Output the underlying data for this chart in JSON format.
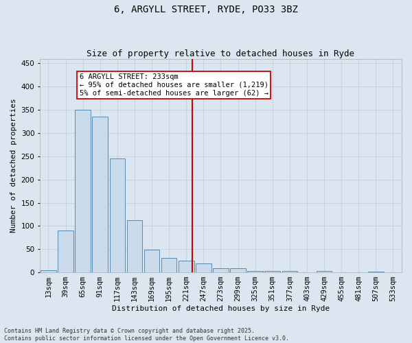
{
  "title": "6, ARGYLL STREET, RYDE, PO33 3BZ",
  "subtitle": "Size of property relative to detached houses in Ryde",
  "xlabel": "Distribution of detached houses by size in Ryde",
  "ylabel": "Number of detached properties",
  "footer": "Contains HM Land Registry data © Crown copyright and database right 2025.\nContains public sector information licensed under the Open Government Licence v3.0.",
  "categories": [
    "13sqm",
    "39sqm",
    "65sqm",
    "91sqm",
    "117sqm",
    "143sqm",
    "169sqm",
    "195sqm",
    "221sqm",
    "247sqm",
    "273sqm",
    "299sqm",
    "325sqm",
    "351sqm",
    "377sqm",
    "403sqm",
    "429sqm",
    "455sqm",
    "481sqm",
    "507sqm",
    "533sqm"
  ],
  "values": [
    5,
    90,
    350,
    336,
    246,
    112,
    49,
    31,
    25,
    19,
    9,
    9,
    3,
    3,
    3,
    0,
    3,
    0,
    0,
    2,
    0
  ],
  "bar_color": "#c9daea",
  "bar_edge_color": "#5a8ab0",
  "grid_color": "#c8d4e4",
  "background_color": "#dce6f0",
  "annotation_text": "6 ARGYLL STREET: 233sqm\n← 95% of detached houses are smaller (1,219)\n5% of semi-detached houses are larger (62) →",
  "vline_index": 8.35,
  "vline_color": "#cc0000",
  "ylim": [
    0,
    460
  ],
  "yticks": [
    0,
    50,
    100,
    150,
    200,
    250,
    300,
    350,
    400,
    450
  ],
  "title_fontsize": 10,
  "subtitle_fontsize": 9,
  "axis_label_fontsize": 8,
  "tick_fontsize": 7.5,
  "annotation_fontsize": 7.5,
  "footer_fontsize": 6
}
